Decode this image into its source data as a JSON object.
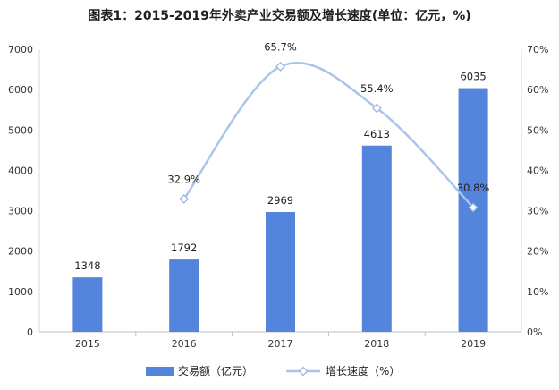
{
  "chart_data": {
    "type": "bar",
    "title": "图表1：2015-2019年外卖产业交易额及增长速度(单位：亿元，%)",
    "categories": [
      "2015",
      "2016",
      "2017",
      "2018",
      "2019"
    ],
    "series": [
      {
        "name": "交易额（亿元）",
        "type": "bar",
        "axis": "left",
        "values": [
          1348,
          1792,
          2969,
          4613,
          6035
        ],
        "color": "#5584dc"
      },
      {
        "name": "增长速度（%）",
        "type": "line",
        "axis": "right",
        "values": [
          null,
          32.9,
          65.7,
          55.4,
          30.8
        ],
        "color": "#aac4ec"
      }
    ],
    "bar_labels": [
      "1348",
      "1792",
      "2969",
      "4613",
      "6035"
    ],
    "line_labels": [
      "",
      "32.9%",
      "65.7%",
      "55.4%",
      "30.8%"
    ],
    "y_left": {
      "min": 0,
      "max": 7000,
      "step": 1000,
      "ticks": [
        "0",
        "1000",
        "2000",
        "3000",
        "4000",
        "5000",
        "6000",
        "7000"
      ]
    },
    "y_right": {
      "min": 0,
      "max": 70,
      "step": 10,
      "ticks": [
        "0%",
        "10%",
        "20%",
        "30%",
        "40%",
        "50%",
        "60%",
        "70%"
      ]
    },
    "legend_position": "bottom",
    "grid": false
  }
}
